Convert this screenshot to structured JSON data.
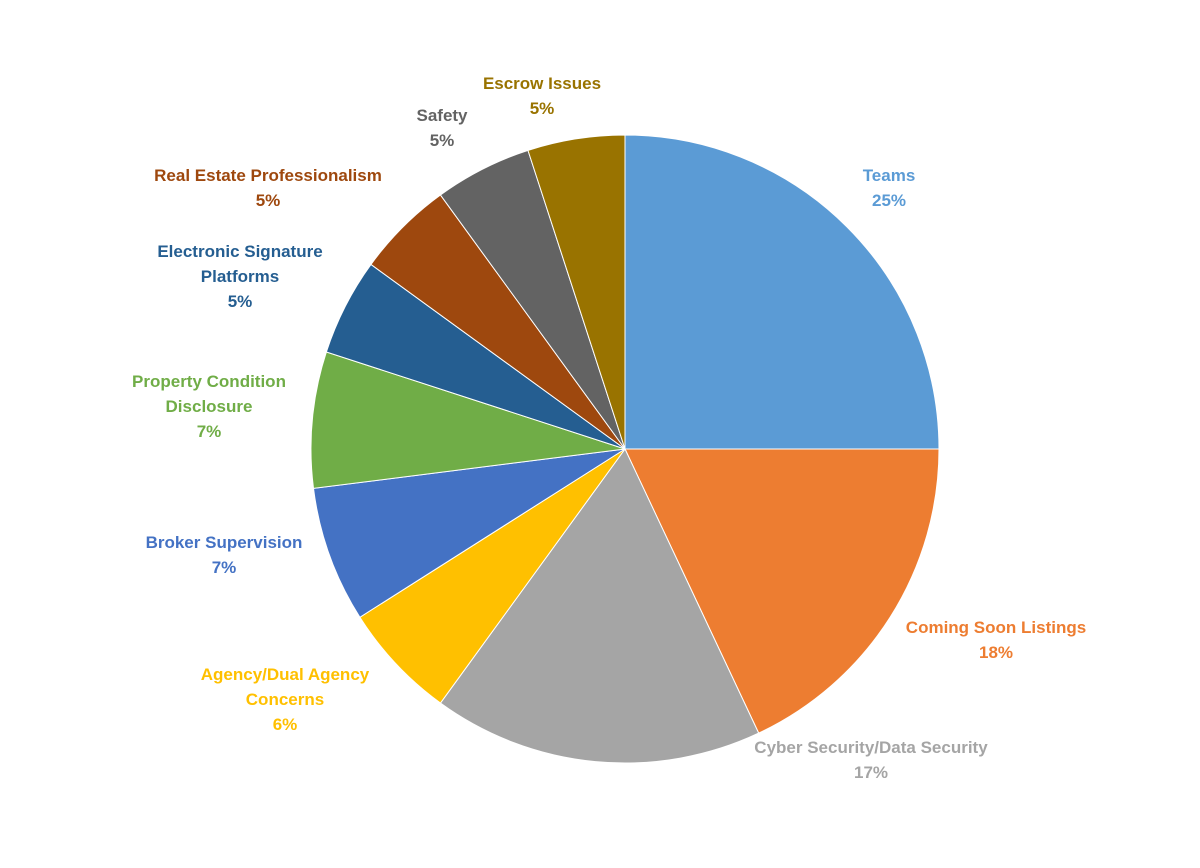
{
  "chart_data": {
    "type": "pie",
    "title": "",
    "slices": [
      {
        "label": "Teams",
        "value": 25,
        "value_label": "25%",
        "color": "#5b9bd5"
      },
      {
        "label": "Coming Soon Listings",
        "value": 18,
        "value_label": "18%",
        "color": "#ed7d31"
      },
      {
        "label": "Cyber Security/Data Security",
        "value": 17,
        "value_label": "17%",
        "color": "#a5a5a5"
      },
      {
        "label": "Agency/Dual Agency Concerns",
        "value": 6,
        "value_label": "6%",
        "color": "#ffc000"
      },
      {
        "label": "Broker Supervision",
        "value": 7,
        "value_label": "7%",
        "color": "#4472c4"
      },
      {
        "label": "Property Condition Disclosure",
        "value": 7,
        "value_label": "7%",
        "color": "#70ad47"
      },
      {
        "label": "Electronic Signature Platforms",
        "value": 5,
        "value_label": "5%",
        "color": "#255e91"
      },
      {
        "label": "Real Estate Professionalism",
        "value": 5,
        "value_label": "5%",
        "color": "#9e480e"
      },
      {
        "label": "Safety",
        "value": 5,
        "value_label": "5%",
        "color": "#636363"
      },
      {
        "label": "Escrow Issues",
        "value": 5,
        "value_label": "5%",
        "color": "#997300"
      }
    ]
  }
}
